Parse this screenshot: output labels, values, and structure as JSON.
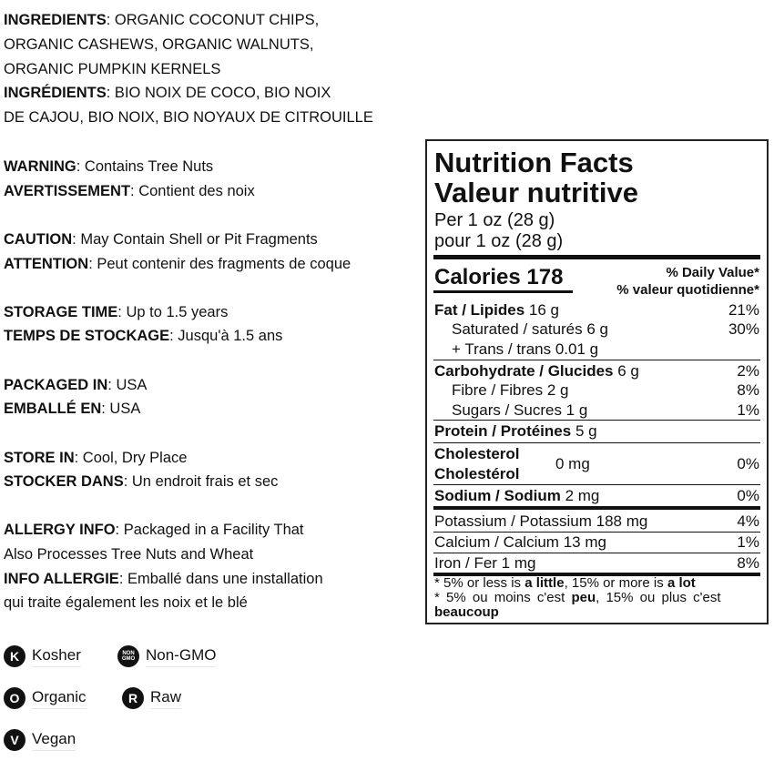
{
  "left": {
    "lines": [
      {
        "k": "INGREDIENTS",
        "t": ": ORGANIC COCONUT CHIPS,"
      },
      {
        "k": "",
        "t": "ORGANIC CASHEWS, ORGANIC WALNUTS,"
      },
      {
        "k": "",
        "t": "ORGANIC PUMPKIN KERNELS"
      },
      {
        "k": "INGRÉDIENTS",
        "t": ": BIO NOIX DE COCO, BIO NOIX"
      },
      {
        "k": "",
        "t": "DE CAJOU, BIO NOIX, BIO NOYAUX DE CITROUILLE"
      },
      {
        "k": "WARNING",
        "t": ": Contains Tree Nuts"
      },
      {
        "k": "AVERTISSEMENT",
        "t": ": Contient des noix"
      },
      {
        "k": "CAUTION",
        "t": ": May Contain Shell or Pit Fragments"
      },
      {
        "k": "ATTENTION",
        "t": ": Peut contenir des fragments de coque"
      },
      {
        "k": "STORAGE TIME",
        "t": ": Up to 1.5 years"
      },
      {
        "k": "TEMPS DE STOCKAGE",
        "t": ": Jusqu'à 1.5 ans"
      },
      {
        "k": "PACKAGED IN",
        "t": ": USA"
      },
      {
        "k": "EMBALLÉ EN",
        "t": ": USA"
      },
      {
        "k": "STORE IN",
        "t": ": Cool, Dry Place"
      },
      {
        "k": "STOCKER DANS",
        "t": ": Un endroit frais et sec"
      },
      {
        "k": "ALLERGY INFO",
        "t": ": Packaged in a Facility That"
      },
      {
        "k": "",
        "t": "Also Processes Tree Nuts and Wheat"
      },
      {
        "k": "INFO ALLERGIE",
        "t": ": Emballé dans une installation"
      },
      {
        "k": "",
        "t": "qui traite également les noix et le blé"
      }
    ]
  },
  "badges": [
    {
      "icon": "K",
      "label": "Kosher"
    },
    {
      "icon": "NON GMO",
      "label": "Non-GMO"
    },
    {
      "icon": "O",
      "label": "Organic"
    },
    {
      "icon": "R",
      "label": "Raw"
    },
    {
      "icon": "V",
      "label": "Vegan"
    }
  ],
  "nutrition": {
    "title_en": "Nutrition Facts",
    "title_fr": "Valeur nutritive",
    "serving_en": "Per 1 oz (28 g)",
    "serving_fr": "pour 1 oz (28 g)",
    "calories_label": "Calories 178",
    "dv_en": "% Daily Value*",
    "dv_fr": "% valeur quotidienne*",
    "fat": {
      "label": "Fat / Lipides",
      "amt": "16 g",
      "dv": "21%"
    },
    "sat": {
      "label": "Saturated / saturés 6 g",
      "dv": "30%"
    },
    "trans": {
      "label": "+ Trans / trans 0.01 g"
    },
    "carb": {
      "label": "Carbohydrate / Glucides",
      "amt": "6 g",
      "dv": "2%"
    },
    "fibre": {
      "label": "Fibre / Fibres 2 g",
      "dv": "8%"
    },
    "sugars": {
      "label": "Sugars / Sucres 1 g",
      "dv": "1%"
    },
    "protein": {
      "label": "Protein / Protéines",
      "amt": "5 g"
    },
    "chol": {
      "label_en": "Cholesterol",
      "label_fr": "Cholestérol",
      "amt": "0 mg",
      "dv": "0%"
    },
    "sodium": {
      "label": "Sodium / Sodium",
      "amt": "2 mg",
      "dv": "0%"
    },
    "potassium": {
      "label": "Potassium / Potassium 188 mg",
      "dv": "4%"
    },
    "calcium": {
      "label": "Calcium / Calcium 13 mg",
      "dv": "1%"
    },
    "iron": {
      "label": "Iron / Fer 1 mg",
      "dv": "8%"
    },
    "foot1": {
      "a": "* 5% or less is ",
      "b": "a little",
      "c": ", 15% or more is ",
      "d": "a lot"
    },
    "foot2": {
      "a": "* 5% ou moins c'est ",
      "b": "peu",
      "c": ", 15% ou plus c'est",
      "d": "beaucoup"
    }
  }
}
